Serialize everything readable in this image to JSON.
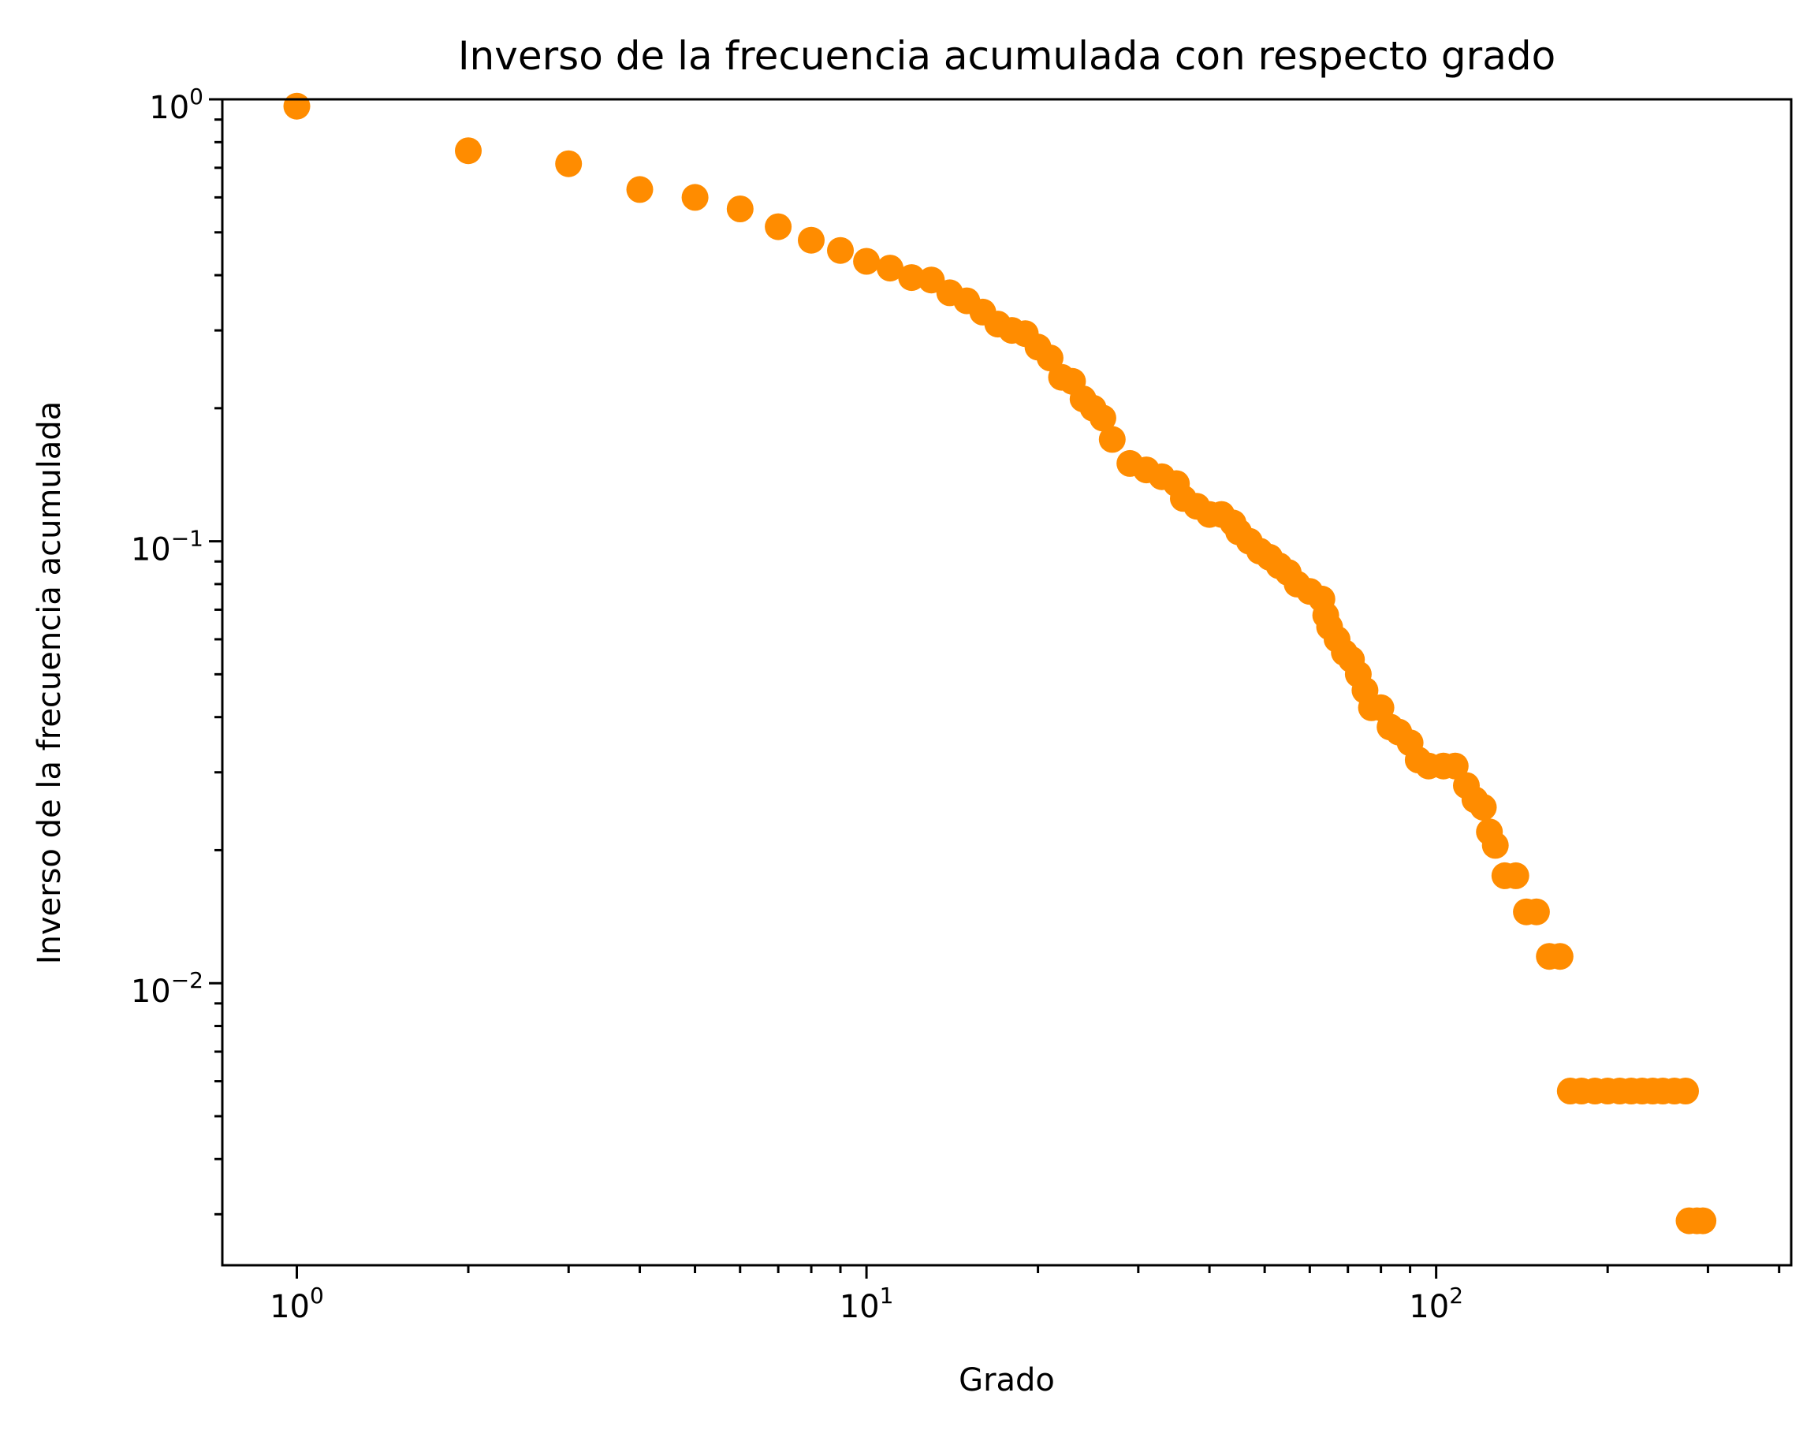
{
  "chart_data": {
    "type": "scatter",
    "title": "Inverso de la frecuencia acumulada con respecto grado",
    "xlabel": "Grado",
    "ylabel": "Inverso de la frecuencia acumulada",
    "xscale": "log",
    "yscale": "log",
    "xlim": [
      0.74,
      420
    ],
    "ylim": [
      0.0023,
      1.0
    ],
    "grid": false,
    "legend": "none",
    "marker_color": "#ff8c00",
    "x_ticks": [
      {
        "value": 1,
        "base": "10",
        "exp": "0"
      },
      {
        "value": 10,
        "base": "10",
        "exp": "1"
      },
      {
        "value": 100,
        "base": "10",
        "exp": "2"
      }
    ],
    "y_ticks": [
      {
        "value": 1,
        "base": "10",
        "exp": "0"
      },
      {
        "value": 0.1,
        "base": "10",
        "exp": "−1"
      },
      {
        "value": 0.01,
        "base": "10",
        "exp": "−2"
      }
    ],
    "points": [
      [
        1,
        0.965
      ],
      [
        2,
        0.765
      ],
      [
        3,
        0.715
      ],
      [
        4,
        0.625
      ],
      [
        5,
        0.6
      ],
      [
        6,
        0.565
      ],
      [
        7,
        0.515
      ],
      [
        8,
        0.48
      ],
      [
        9,
        0.455
      ],
      [
        10,
        0.43
      ],
      [
        11,
        0.415
      ],
      [
        12,
        0.395
      ],
      [
        13,
        0.39
      ],
      [
        14,
        0.365
      ],
      [
        15,
        0.35
      ],
      [
        16,
        0.33
      ],
      [
        17,
        0.31
      ],
      [
        18,
        0.3
      ],
      [
        19,
        0.295
      ],
      [
        20,
        0.275
      ],
      [
        21,
        0.26
      ],
      [
        22,
        0.235
      ],
      [
        23,
        0.23
      ],
      [
        24,
        0.21
      ],
      [
        25,
        0.2
      ],
      [
        26,
        0.19
      ],
      [
        27,
        0.17
      ],
      [
        29,
        0.15
      ],
      [
        31,
        0.145
      ],
      [
        33,
        0.14
      ],
      [
        35,
        0.135
      ],
      [
        36,
        0.125
      ],
      [
        38,
        0.12
      ],
      [
        40,
        0.115
      ],
      [
        42,
        0.115
      ],
      [
        44,
        0.11
      ],
      [
        45,
        0.105
      ],
      [
        47,
        0.1
      ],
      [
        49,
        0.095
      ],
      [
        51,
        0.092
      ],
      [
        53,
        0.088
      ],
      [
        55,
        0.085
      ],
      [
        57,
        0.08
      ],
      [
        60,
        0.077
      ],
      [
        63,
        0.074
      ],
      [
        64,
        0.068
      ],
      [
        65,
        0.064
      ],
      [
        67,
        0.06
      ],
      [
        69,
        0.056
      ],
      [
        71,
        0.054
      ],
      [
        73,
        0.05
      ],
      [
        75,
        0.046
      ],
      [
        77,
        0.042
      ],
      [
        80,
        0.042
      ],
      [
        83,
        0.038
      ],
      [
        86,
        0.037
      ],
      [
        90,
        0.035
      ],
      [
        93,
        0.032
      ],
      [
        97,
        0.031
      ],
      [
        103,
        0.031
      ],
      [
        108,
        0.031
      ],
      [
        113,
        0.028
      ],
      [
        117,
        0.026
      ],
      [
        121,
        0.025
      ],
      [
        124,
        0.022
      ],
      [
        127,
        0.0205
      ],
      [
        132,
        0.0175
      ],
      [
        138,
        0.0175
      ],
      [
        144,
        0.0145
      ],
      [
        150,
        0.0145
      ],
      [
        158,
        0.0115
      ],
      [
        165,
        0.0115
      ],
      [
        172,
        0.0057
      ],
      [
        180,
        0.0057
      ],
      [
        190,
        0.0057
      ],
      [
        200,
        0.0057
      ],
      [
        210,
        0.0057
      ],
      [
        220,
        0.0057
      ],
      [
        230,
        0.0057
      ],
      [
        240,
        0.0057
      ],
      [
        250,
        0.0057
      ],
      [
        262,
        0.0057
      ],
      [
        274,
        0.0057
      ],
      [
        278,
        0.0029
      ],
      [
        287,
        0.0029
      ],
      [
        294,
        0.0029
      ]
    ]
  }
}
